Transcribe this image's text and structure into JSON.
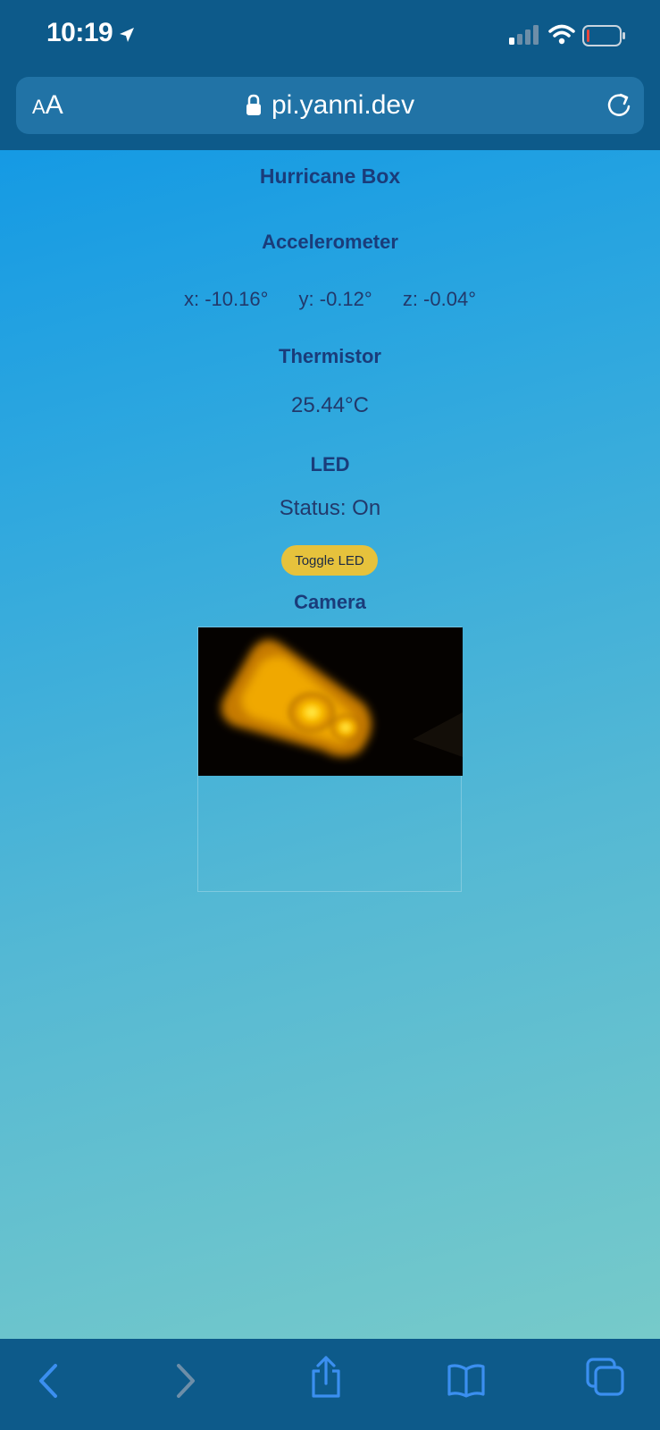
{
  "status_bar": {
    "time": "10:19"
  },
  "browser": {
    "text_size_label_small": "A",
    "text_size_label_large": "A",
    "url": "pi.yanni.dev"
  },
  "page": {
    "title": "Hurricane Box",
    "accelerometer": {
      "heading": "Accelerometer",
      "x": "x: -10.16°",
      "y": "y: -0.12°",
      "z": "z: -0.04°"
    },
    "thermistor": {
      "heading": "Thermistor",
      "value": "25.44°C"
    },
    "led": {
      "heading": "LED",
      "status": "Status: On",
      "toggle_label": "Toggle LED"
    },
    "camera": {
      "heading": "Camera"
    }
  },
  "colors": {
    "chrome": "#0d5a8a",
    "url_bar": "#2173a6",
    "heading_text": "#1a3c7a",
    "toggle_button": "#e6c23c",
    "accent_blue": "#3b8ff0"
  },
  "icons": {
    "location": "location-arrow-icon",
    "signal": "cellular-signal-icon",
    "wifi": "wifi-icon",
    "battery": "battery-low-icon",
    "lock": "lock-icon",
    "reload": "reload-icon",
    "back": "back-chevron-icon",
    "forward": "forward-chevron-icon",
    "share": "share-icon",
    "bookmarks": "bookmarks-icon",
    "tabs": "tabs-icon"
  }
}
